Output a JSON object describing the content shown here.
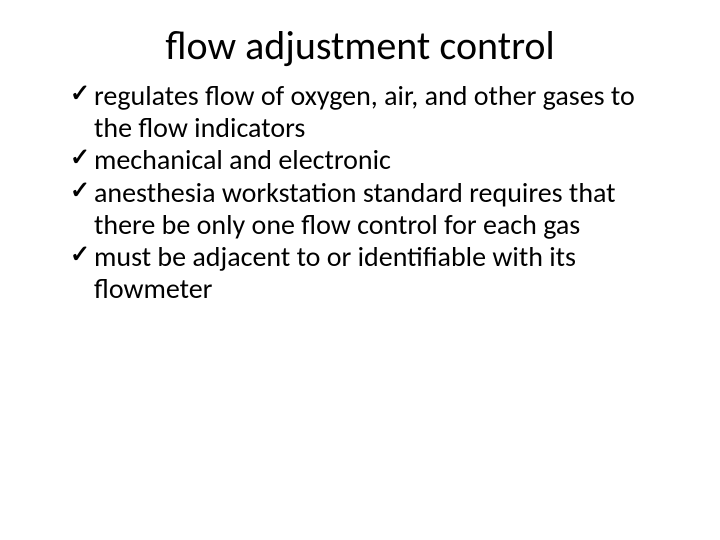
{
  "slide": {
    "title": "flow adjustment control",
    "bullets": [
      "regulates flow of oxygen, air, and other gases to the flow indicators",
      "mechanical and electronic",
      "anesthesia workstation standard requires that there be only one flow control for each gas",
      "must be adjacent to or identifiable with its flowmeter"
    ]
  },
  "style": {
    "background_color": "#ffffff",
    "text_color": "#000000",
    "title_fontsize": 40,
    "title_weight": 400,
    "bullet_fontsize": 28,
    "bullet_marker": "✓",
    "font_family": "Calibri"
  }
}
